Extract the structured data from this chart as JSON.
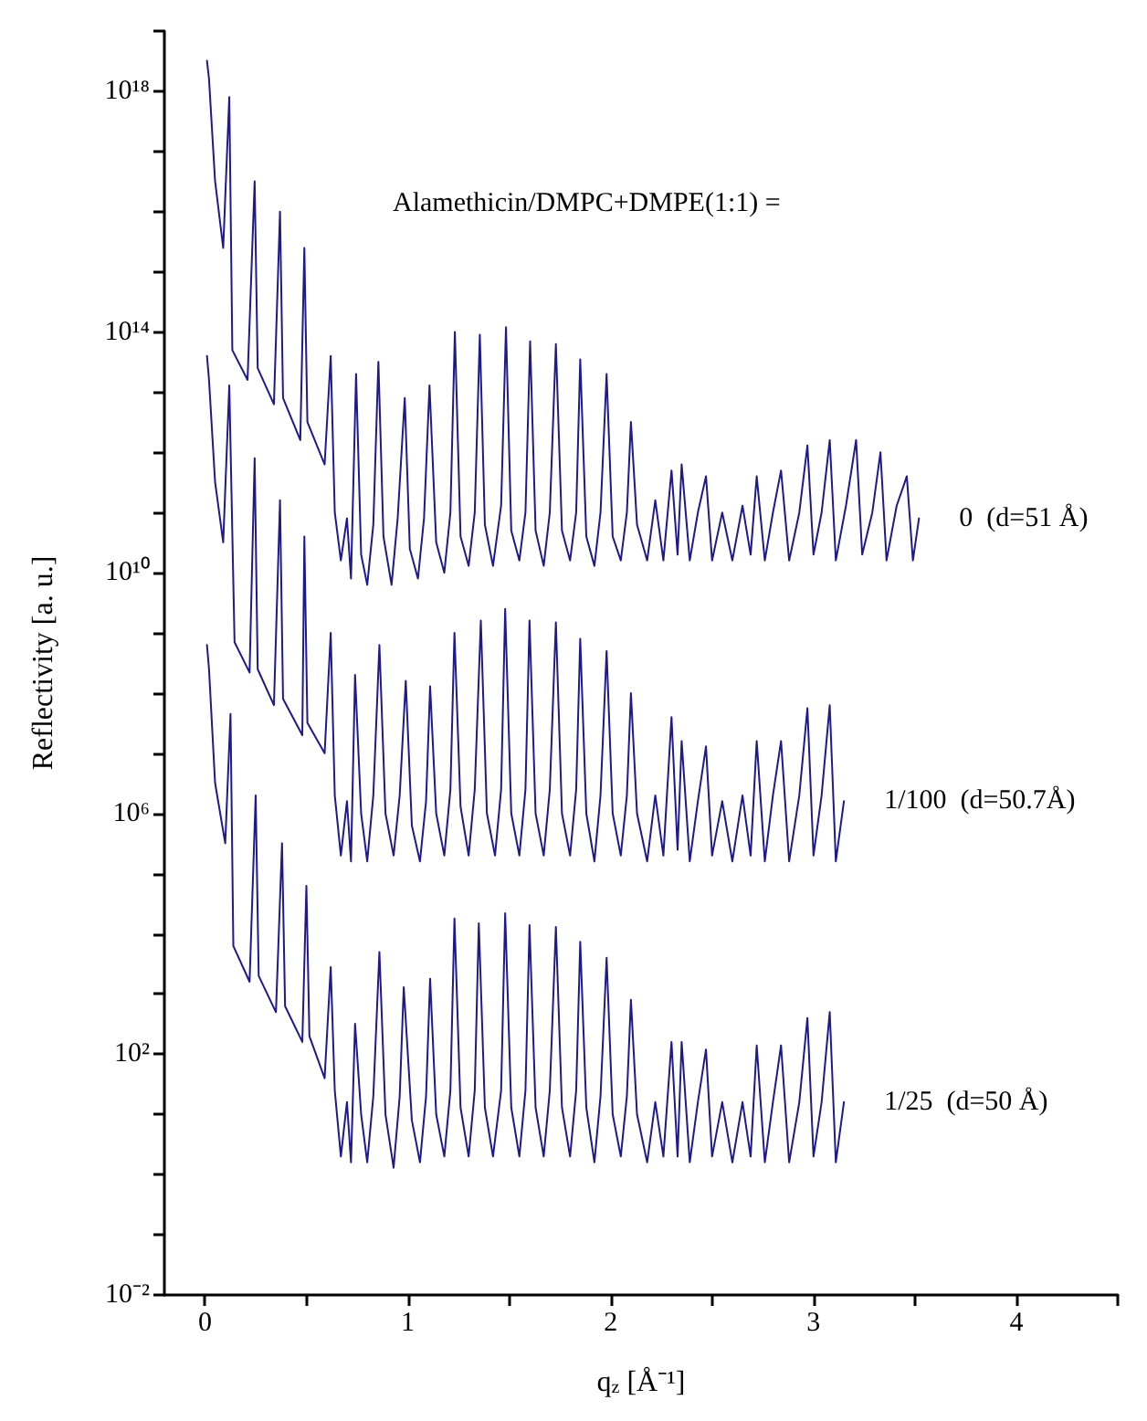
{
  "chart_data": {
    "type": "line",
    "xlabel": "q$_{z}$ [Å⁻¹]",
    "ylabel": "Reflectivity [a. u.]",
    "annotations": [
      "Alamethicin/DMPC+DMPE(1:1) ="
    ],
    "log": "y",
    "grid": false,
    "marker": "none",
    "xlim": [
      -0.2,
      4.5
    ],
    "xticks": [
      0,
      {
        "value": 0.5,
        "label": null
      },
      1,
      {
        "value": 1.5,
        "label": null
      },
      2,
      {
        "value": 2.5,
        "label": null
      },
      3,
      {
        "value": 3.5,
        "label": null
      },
      4,
      {
        "value": 4.5,
        "label": null
      }
    ],
    "ylim": [
      0.01,
      1e+19
    ],
    "yticks": [
      {
        "value": 0.01,
        "label": "10⁻²"
      },
      {
        "value": 0.1,
        "label": null
      },
      {
        "value": 1,
        "label": null
      },
      {
        "value": 10,
        "label": null
      },
      {
        "value": 100,
        "label": "10²"
      },
      {
        "value": 1000,
        "label": null
      },
      {
        "value": 10000,
        "label": null
      },
      {
        "value": 100000,
        "label": null
      },
      {
        "value": 1000000.0,
        "label": "10⁶"
      },
      {
        "value": 10000000.0,
        "label": null
      },
      {
        "value": 100000000.0,
        "label": null
      },
      {
        "value": 1000000000.0,
        "label": null
      },
      {
        "value": 10000000000.0,
        "label": "10¹⁰"
      },
      {
        "value": 100000000000.0,
        "label": null
      },
      {
        "value": 1000000000000.0,
        "label": null
      },
      {
        "value": 10000000000000.0,
        "label": null
      },
      {
        "value": 100000000000000.0,
        "label": "10¹⁴"
      },
      {
        "value": 1000000000000000.0,
        "label": null
      },
      {
        "value": 1e+16,
        "label": null
      },
      {
        "value": 1e+17,
        "label": null
      },
      {
        "value": 1e+18,
        "label": "10¹⁸"
      },
      {
        "value": 1e+19,
        "label": null
      }
    ],
    "series": [
      {
        "name": "0  (d=51 Å)",
        "color": "#1e1a8c",
        "x": [
          0.01,
          0.02,
          0.05,
          0.09,
          0.12,
          0.135,
          0.21,
          0.245,
          0.26,
          0.34,
          0.37,
          0.385,
          0.47,
          0.49,
          0.505,
          0.59,
          0.62,
          0.64,
          0.67,
          0.7,
          0.72,
          0.745,
          0.77,
          0.8,
          0.83,
          0.855,
          0.88,
          0.92,
          0.95,
          0.985,
          1.01,
          1.05,
          1.08,
          1.107,
          1.14,
          1.18,
          1.21,
          1.232,
          1.26,
          1.3,
          1.33,
          1.355,
          1.38,
          1.42,
          1.46,
          1.484,
          1.51,
          1.55,
          1.58,
          1.603,
          1.63,
          1.67,
          1.7,
          1.73,
          1.76,
          1.8,
          1.83,
          1.85,
          1.88,
          1.92,
          1.95,
          1.98,
          2.01,
          2.05,
          2.08,
          2.1,
          2.13,
          2.18,
          2.22,
          2.26,
          2.3,
          2.33,
          2.35,
          2.39,
          2.43,
          2.47,
          2.5,
          2.55,
          2.6,
          2.65,
          2.69,
          2.72,
          2.76,
          2.8,
          2.84,
          2.88,
          2.93,
          2.97,
          3.0,
          3.04,
          3.08,
          3.11,
          3.16,
          3.21,
          3.24,
          3.29,
          3.33,
          3.36,
          3.41,
          3.46,
          3.49,
          3.52
        ],
        "values": [
          3.2e+18,
          1.6e+18,
          3.2e+16,
          2500000000000000.0,
          8e+17,
          50000000000000.0,
          16000000000000.0,
          3.2e+16,
          25000000000000.0,
          6300000000000.0,
          1e+16,
          8000000000000.0,
          1600000000000.0,
          2500000000000000.0,
          3200000000000.0,
          630000000000.0,
          40000000000000.0,
          100000000000.0,
          16000000000.0,
          80000000000.0,
          8000000000.0,
          20000000000000.0,
          20000000000.0,
          6300000000.0,
          63000000000.0,
          32000000000000.0,
          40000000000.0,
          6300000000.0,
          80000000000.0,
          8000000000000.0,
          25000000000.0,
          8000000000.0,
          80000000000.0,
          13000000000000.0,
          32000000000.0,
          10000000000.0,
          100000000000.0,
          100000000000000.0,
          40000000000.0,
          13000000000.0,
          100000000000.0,
          90000000000000.0,
          63000000000.0,
          13000000000.0,
          130000000000.0,
          120000000000000.0,
          50000000000.0,
          16000000000.0,
          100000000000.0,
          70000000000000.0,
          50000000000.0,
          13000000000.0,
          100000000000.0,
          63000000000000.0,
          50000000000.0,
          16000000000.0,
          100000000000.0,
          35000000000000.0,
          40000000000.0,
          13000000000.0,
          100000000000.0,
          20000000000000.0,
          40000000000.0,
          16000000000.0,
          100000000000.0,
          3200000000000.0,
          63000000000.0,
          16000000000.0,
          160000000000.0,
          16000000000.0,
          500000000000.0,
          20000000000.0,
          630000000000.0,
          16000000000.0,
          100000000000.0,
          400000000000.0,
          16000000000.0,
          100000000000.0,
          16000000000.0,
          130000000000.0,
          20000000000.0,
          400000000000.0,
          16000000000.0,
          100000000000.0,
          500000000000.0,
          16000000000.0,
          100000000000.0,
          1300000000000.0,
          20000000000.0,
          100000000000.0,
          1600000000000.0,
          16000000000.0,
          130000000000.0,
          1600000000000.0,
          20000000000.0,
          100000000000.0,
          1000000000000.0,
          16000000000.0,
          130000000000.0,
          400000000000.0,
          16000000000.0,
          80000000000.0
        ]
      },
      {
        "name": "1/100  (d=50.7Å)",
        "color": "#1e1a8c",
        "x": [
          0.01,
          0.02,
          0.05,
          0.09,
          0.12,
          0.146,
          0.22,
          0.245,
          0.26,
          0.34,
          0.37,
          0.385,
          0.48,
          0.49,
          0.505,
          0.59,
          0.62,
          0.64,
          0.67,
          0.7,
          0.72,
          0.74,
          0.77,
          0.8,
          0.83,
          0.86,
          0.89,
          0.93,
          0.96,
          0.99,
          1.02,
          1.06,
          1.09,
          1.11,
          1.14,
          1.18,
          1.21,
          1.23,
          1.26,
          1.3,
          1.33,
          1.36,
          1.39,
          1.43,
          1.46,
          1.48,
          1.51,
          1.55,
          1.58,
          1.6,
          1.63,
          1.67,
          1.7,
          1.73,
          1.76,
          1.8,
          1.83,
          1.85,
          1.88,
          1.92,
          1.95,
          1.98,
          2.01,
          2.05,
          2.08,
          2.1,
          2.13,
          2.18,
          2.22,
          2.26,
          2.3,
          2.33,
          2.35,
          2.39,
          2.43,
          2.47,
          2.5,
          2.55,
          2.6,
          2.65,
          2.69,
          2.72,
          2.76,
          2.8,
          2.84,
          2.88,
          2.93,
          2.97,
          3.0,
          3.04,
          3.08,
          3.11,
          3.15
        ],
        "values": [
          40000000000000.0,
          16000000000000.0,
          320000000000.0,
          32000000000.0,
          13000000000000.0,
          700000000.0,
          220000000.0,
          800000000000.0,
          250000000.0,
          63000000.0,
          160000000000.0,
          80000000.0,
          20000000.0,
          40000000000.0,
          32000000.0,
          10000000.0,
          1000000000.0,
          2000000.0,
          200000.0,
          1600000.0,
          160000.0,
          200000000.0,
          1000000.0,
          160000.0,
          2000000.0,
          630000000.0,
          1000000.0,
          200000.0,
          2000000.0,
          160000000.0,
          630000.0,
          160000.0,
          1600000.0,
          130000000.0,
          1000000.0,
          200000.0,
          2500000.0,
          1000000000.0,
          1300000.0,
          200000.0,
          2500000.0,
          1600000000.0,
          1000000.0,
          200000.0,
          2500000.0,
          2500000000.0,
          1000000.0,
          200000.0,
          2500000.0,
          1600000000.0,
          1000000.0,
          200000.0,
          2500000.0,
          1500000000.0,
          1000000.0,
          200000.0,
          2500000.0,
          800000000.0,
          1000000.0,
          160000.0,
          2000000.0,
          500000000.0,
          1000000.0,
          200000.0,
          2000000.0,
          100000000.0,
          1000000.0,
          160000.0,
          2000000.0,
          200000.0,
          40000000.0,
          250000.0,
          16000000.0,
          160000.0,
          1600000.0,
          13000000.0,
          200000.0,
          1600000.0,
          160000.0,
          2000000.0,
          200000.0,
          16000000.0,
          160000.0,
          2000000.0,
          16000000.0,
          160000.0,
          2000000.0,
          56000000.0,
          200000.0,
          2000000.0,
          63000000.0,
          160000.0,
          1600000.0
        ]
      },
      {
        "name": "1/25  (d=50 Å)",
        "color": "#1e1a8c",
        "x": [
          0.01,
          0.02,
          0.05,
          0.1,
          0.126,
          0.14,
          0.22,
          0.25,
          0.265,
          0.35,
          0.38,
          0.395,
          0.48,
          0.5,
          0.515,
          0.59,
          0.62,
          0.64,
          0.67,
          0.7,
          0.72,
          0.74,
          0.77,
          0.8,
          0.83,
          0.86,
          0.89,
          0.93,
          0.96,
          0.98,
          1.02,
          1.06,
          1.09,
          1.11,
          1.14,
          1.18,
          1.21,
          1.23,
          1.26,
          1.3,
          1.33,
          1.35,
          1.38,
          1.42,
          1.46,
          1.48,
          1.51,
          1.55,
          1.58,
          1.6,
          1.63,
          1.67,
          1.7,
          1.73,
          1.76,
          1.8,
          1.83,
          1.85,
          1.88,
          1.92,
          1.95,
          1.98,
          2.01,
          2.05,
          2.08,
          2.1,
          2.13,
          2.18,
          2.22,
          2.26,
          2.3,
          2.33,
          2.35,
          2.39,
          2.43,
          2.47,
          2.5,
          2.55,
          2.6,
          2.65,
          2.69,
          2.72,
          2.76,
          2.8,
          2.84,
          2.88,
          2.93,
          2.97,
          3.0,
          3.04,
          3.08,
          3.11,
          3.15
        ],
        "values": [
          630000000.0,
          250000000.0,
          3200000.0,
          320000.0,
          45000000.0,
          6300.0,
          1600.0,
          2000000.0,
          2000.0,
          500,
          320000.0,
          630,
          160,
          63000.0,
          200,
          40,
          2800.0,
          25,
          2,
          16,
          1.6,
          320,
          10,
          1.6,
          20,
          5000.0,
          10,
          1.3,
          20,
          1300.0,
          8,
          1.6,
          20,
          1800.0,
          10,
          2,
          25,
          18000.0,
          13,
          2,
          25,
          15000.0,
          13,
          2,
          25,
          22000.0,
          13,
          2,
          25,
          14000.0,
          13,
          2,
          25,
          13000.0,
          13,
          2,
          25,
          7400.0,
          13,
          1.6,
          20,
          4000.0,
          10,
          2,
          20,
          800,
          10,
          1.6,
          16,
          2,
          160,
          2,
          160,
          1.6,
          16,
          120,
          2,
          16,
          1.6,
          16,
          2,
          140,
          1.6,
          16,
          140,
          1.6,
          16,
          400,
          2,
          16,
          500,
          1.6,
          16
        ]
      }
    ]
  }
}
